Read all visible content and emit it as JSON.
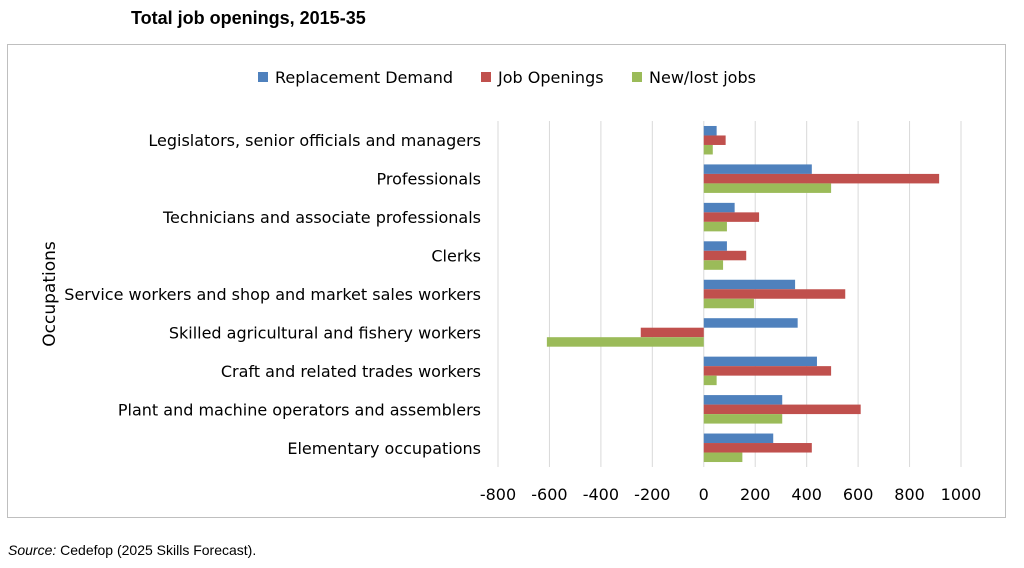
{
  "figure": {
    "source_label": "Source:",
    "source_text": " Cedefop (2025 Skills Forecast)."
  },
  "colors": {
    "replacement": "#4f81bd",
    "openings": "#c0504d",
    "newlost": "#9bbb59",
    "grid": "#d9d9d9"
  },
  "chart_data": {
    "type": "bar",
    "orientation": "horizontal",
    "title": "Total job openings, 2015-35",
    "ylabel": "Occupations",
    "xlabel": "",
    "xlim": [
      -800,
      1000
    ],
    "xticks": [
      -800,
      -600,
      -400,
      -200,
      0,
      200,
      400,
      600,
      800,
      1000
    ],
    "grid": true,
    "legend_position": "top",
    "categories": [
      "Legislators, senior officials and managers",
      "Professionals",
      "Technicians and associate professionals",
      "Clerks",
      "Service workers and shop and market sales workers",
      "Skilled agricultural and fishery workers",
      "Craft and related trades workers",
      "Plant and machine operators and assemblers",
      "Elementary occupations"
    ],
    "series": [
      {
        "name": "Replacement Demand",
        "values": [
          50,
          420,
          120,
          90,
          355,
          365,
          440,
          305,
          270
        ]
      },
      {
        "name": "Job Openings",
        "values": [
          85,
          915,
          215,
          165,
          550,
          -245,
          495,
          610,
          420
        ]
      },
      {
        "name": "New/lost jobs",
        "values": [
          35,
          495,
          90,
          75,
          195,
          -610,
          50,
          305,
          150
        ]
      }
    ]
  }
}
